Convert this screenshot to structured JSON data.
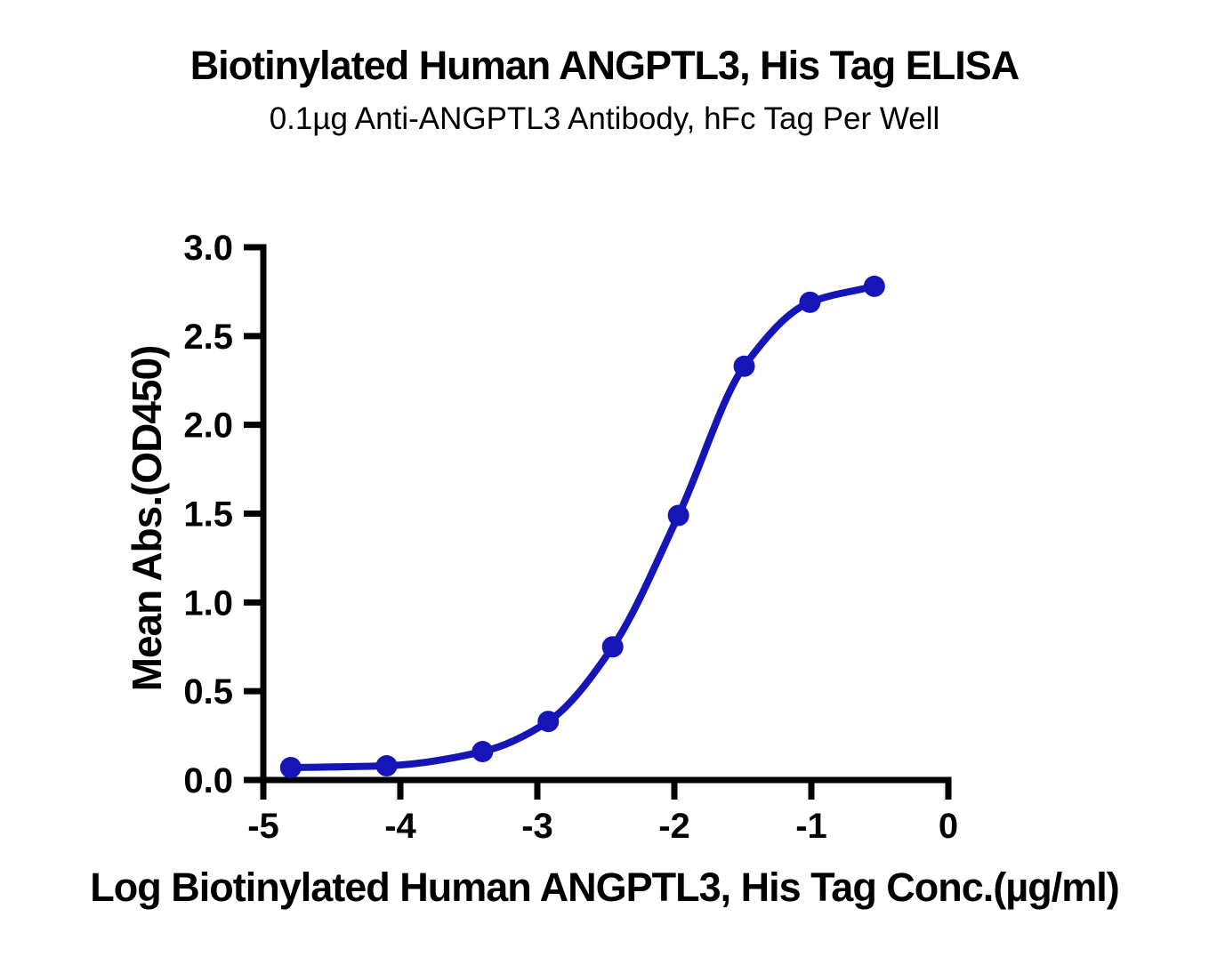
{
  "chart_data": {
    "type": "line",
    "title": "Biotinylated Human ANGPTL3, His Tag ELISA",
    "subtitle": "0.1µg Anti-ANGPTL3 Antibody, hFc Tag Per Well",
    "xlabel": "Log Biotinylated Human ANGPTL3, His Tag Conc.(µg/ml)",
    "ylabel": "Mean Abs.(OD450)",
    "xlim": [
      -5,
      0
    ],
    "ylim": [
      0,
      3
    ],
    "xticks": [
      -5,
      -4,
      -3,
      -2,
      -1,
      0
    ],
    "xtick_labels": [
      "-5",
      "-4",
      "-3",
      "-2",
      "-1",
      "0"
    ],
    "yticks": [
      0,
      0.5,
      1,
      1.5,
      2,
      2.5,
      3
    ],
    "ytick_labels": [
      "0.0",
      "0.5",
      "1.0",
      "1.5",
      "2.0",
      "2.5",
      "3.0"
    ],
    "grid": false,
    "legend": null,
    "series": [
      {
        "name": "Biotinylated Human ANGPTL3, His Tag",
        "marker": "circle",
        "color": "#1515B8",
        "x": [
          -4.8,
          -4.1,
          -3.4,
          -2.92,
          -2.45,
          -1.97,
          -1.49,
          -1.01,
          -0.54
        ],
        "y": [
          0.07,
          0.08,
          0.16,
          0.33,
          0.75,
          1.49,
          2.33,
          2.69,
          2.78
        ]
      }
    ],
    "axis_color": "#000000"
  }
}
